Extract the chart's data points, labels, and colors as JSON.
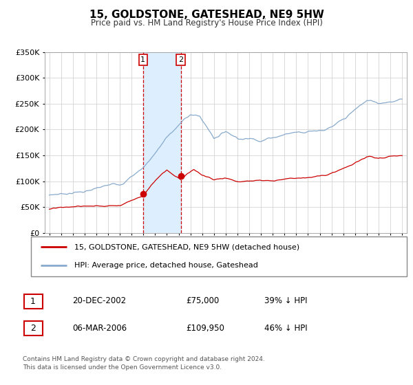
{
  "title": "15, GOLDSTONE, GATESHEAD, NE9 5HW",
  "subtitle": "Price paid vs. HM Land Registry's House Price Index (HPI)",
  "legend_label_red": "15, GOLDSTONE, GATESHEAD, NE9 5HW (detached house)",
  "legend_label_blue": "HPI: Average price, detached house, Gateshead",
  "transaction1_date": "20-DEC-2002",
  "transaction1_price": "£75,000",
  "transaction1_hpi": "39% ↓ HPI",
  "transaction1_year": 2002.97,
  "transaction1_value": 75000,
  "transaction2_date": "06-MAR-2006",
  "transaction2_price": "£109,950",
  "transaction2_hpi": "46% ↓ HPI",
  "transaction2_year": 2006.18,
  "transaction2_value": 109950,
  "footer_line1": "Contains HM Land Registry data © Crown copyright and database right 2024.",
  "footer_line2": "This data is licensed under the Open Government Licence v3.0.",
  "red_color": "#cc0000",
  "blue_color": "#88aacc",
  "grid_color": "#cccccc",
  "background_color": "#ffffff",
  "highlight_color": "#ddeeff",
  "ylim": [
    0,
    350000
  ],
  "xlim_start": 1994.6,
  "xlim_end": 2025.4
}
